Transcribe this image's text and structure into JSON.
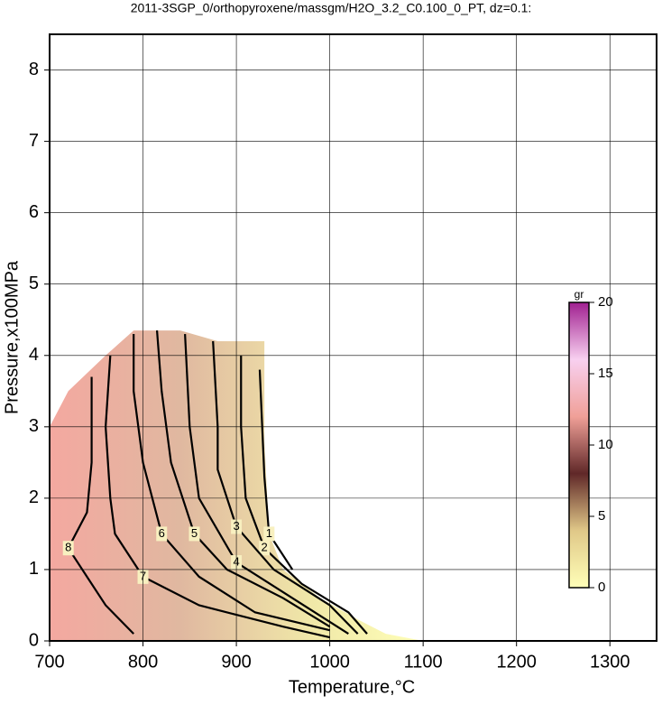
{
  "chart_data": {
    "type": "contour",
    "title": "2011-3SGP_0/orthopyroxene/massgm/H2O_3.2_C0.100_0_PT, dz=0.1:",
    "x_label": "Temperature,°C",
    "y_label": "Pressure,x100MPa",
    "xlim": [
      700,
      1350
    ],
    "xticks": [
      700,
      800,
      900,
      1000,
      1100,
      1200,
      1300
    ],
    "ylim": [
      0,
      8.5
    ],
    "yticks": [
      0,
      1,
      2,
      3,
      4,
      5,
      6,
      7,
      8
    ],
    "grid": true,
    "field": {
      "x": [
        700,
        700,
        720,
        760,
        790,
        840,
        880,
        930,
        930,
        935,
        950,
        990,
        1030,
        1060,
        1100
      ],
      "y": [
        0,
        3.0,
        3.5,
        4.0,
        4.35,
        4.35,
        4.2,
        4.2,
        2.8,
        1.5,
        1.0,
        0.6,
        0.3,
        0.1,
        0
      ]
    },
    "contours": [
      {
        "level": 1,
        "x": [
          925,
          930,
          935,
          960
        ],
        "y": [
          3.8,
          2.3,
          1.5,
          1.0
        ]
      },
      {
        "level": 2,
        "x": [
          905,
          905,
          910,
          930,
          970,
          1020,
          1040
        ],
        "y": [
          4.0,
          3.0,
          2.0,
          1.3,
          0.8,
          0.4,
          0.1
        ]
      },
      {
        "level": 3,
        "x": [
          875,
          880,
          880,
          900,
          940,
          1000,
          1030
        ],
        "y": [
          4.2,
          3.0,
          2.4,
          1.6,
          1.0,
          0.5,
          0.1
        ]
      },
      {
        "level": 4,
        "x": [
          845,
          850,
          860,
          900,
          960,
          1020
        ],
        "y": [
          4.3,
          3.0,
          2.0,
          1.1,
          0.6,
          0.1
        ]
      },
      {
        "level": 5,
        "x": [
          815,
          820,
          830,
          855,
          890,
          950,
          1000
        ],
        "y": [
          4.35,
          3.5,
          2.5,
          1.5,
          1.0,
          0.6,
          0.2
        ]
      },
      {
        "level": 6,
        "x": [
          790,
          790,
          800,
          820,
          860,
          920,
          1000
        ],
        "y": [
          4.3,
          3.5,
          2.5,
          1.5,
          0.9,
          0.4,
          0.15
        ]
      },
      {
        "level": 7,
        "x": [
          765,
          760,
          765,
          770,
          800,
          860,
          950,
          1000
        ],
        "y": [
          4.0,
          3.0,
          2.0,
          1.5,
          0.9,
          0.5,
          0.2,
          0.05
        ]
      },
      {
        "level": 8,
        "x": [
          745,
          745,
          740,
          720,
          740,
          760,
          790
        ],
        "y": [
          3.7,
          2.5,
          1.8,
          1.3,
          0.9,
          0.5,
          0.1
        ]
      }
    ],
    "colorbar": {
      "label": "gr",
      "lim": [
        0,
        20
      ],
      "ticks": [
        0,
        5,
        10,
        15,
        20
      ],
      "colors": [
        "#ffffb8",
        "#e0c888",
        "#602828",
        "#f0a098",
        "#f8d0f0",
        "#a02090"
      ]
    }
  }
}
